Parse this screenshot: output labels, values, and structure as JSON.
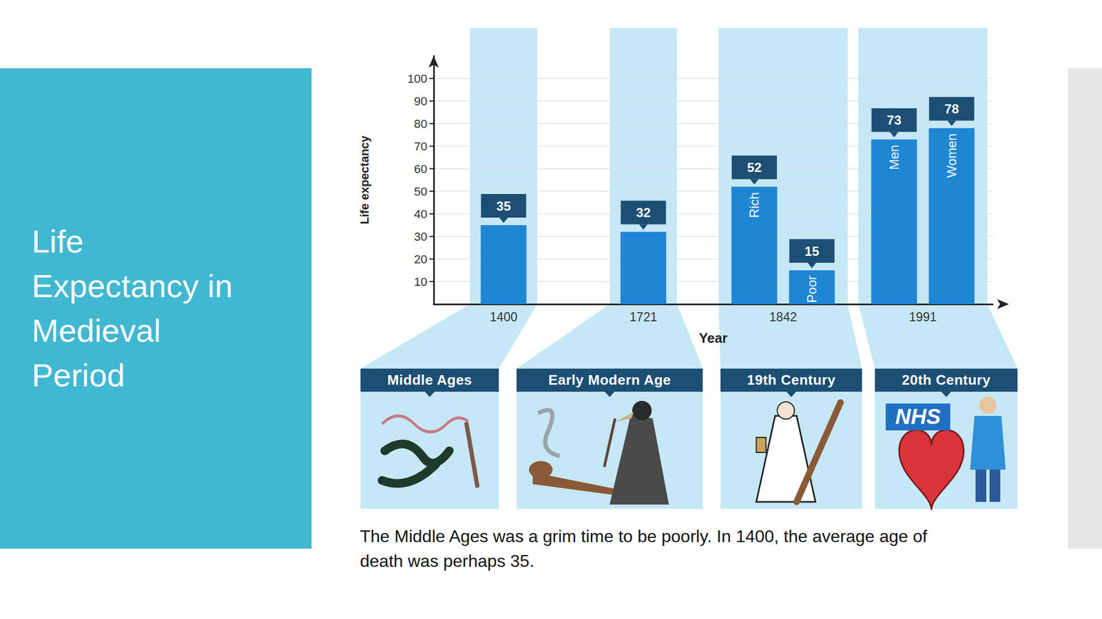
{
  "slide": {
    "title": "Life Expectancy in Medieval Period",
    "caption": "The Middle Ages was a grim time to be poorly. In 1400, the average age of death was perhaps 35.",
    "panels": [
      {
        "heading": "Middle Ages"
      },
      {
        "heading": "Early Modern Age"
      },
      {
        "heading": "19th Century"
      },
      {
        "heading": "20th Century",
        "badge": "NHS"
      }
    ]
  },
  "chart_data": {
    "type": "bar",
    "x_label": "Year",
    "y_label": "Life expectancy",
    "categories": [
      "1400",
      "1721",
      "1842",
      "1991"
    ],
    "series": [
      {
        "color": "#1f86d4",
        "values": [
          35,
          32,
          52,
          73
        ],
        "bar_labels": [
          null,
          null,
          "Rich",
          "Men"
        ]
      },
      {
        "color": "#1f86d4",
        "values": [
          null,
          null,
          15,
          78
        ],
        "bar_labels": [
          null,
          null,
          "Poor",
          "Women"
        ]
      }
    ],
    "ylim": [
      0,
      110
    ],
    "yticks": [
      10,
      20,
      30,
      40,
      50,
      60,
      70,
      80,
      90,
      100
    ],
    "grid": true,
    "data_labels": true
  }
}
